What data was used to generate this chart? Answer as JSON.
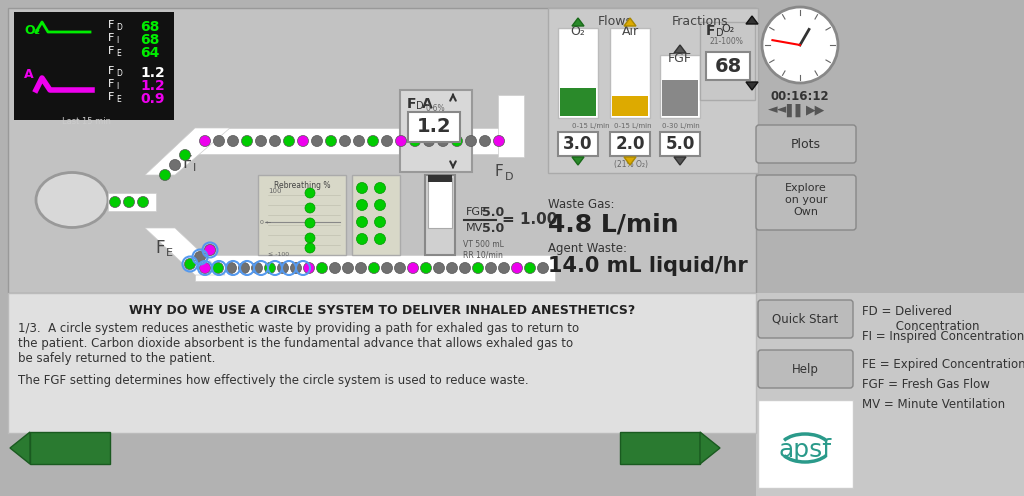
{
  "bg_color": "#b2b2b2",
  "panel_bg": "#c0c0c0",
  "white": "#ffffff",
  "black": "#000000",
  "green_bright": "#00ee00",
  "magenta": "#ee00ee",
  "yellow_flow": "#ddaa00",
  "green_flow": "#2a8a2a",
  "gray_med": "#888888",
  "gray_light": "#cccccc",
  "gray_dark": "#555555",
  "teal": "#2a9a8a",
  "dark_green_btn": "#2a7a30",
  "title_text": "WHY DO WE USE A CIRCLE SYSTEM TO DELIVER INHALED ANESTHETICS?",
  "body_text_1a": "1/3.  A circle system reduces anesthetic waste by providing a path for exhaled gas to return to",
  "body_text_1b": "the patient. Carbon dioxide absorbent is the fundamental advance that allows exhaled gas to",
  "body_text_1c": "be safely returned to the patient.",
  "body_text_2": "The FGF setting determines how effectively the circle system is used to reduce waste.",
  "legend_lines": [
    "FD = Delivered\n         Concentration",
    "FI = Inspired Concentration",
    "FE = Expired Concentration",
    "FGF = Fresh Gas Flow",
    "MV = Minute Ventilation"
  ],
  "waste_gas": "4.8 L/min",
  "agent_waste": "14.0 mL liquid/hr",
  "fgf_mv_ratio": "1.00",
  "vt_rr": "VT 500 mL\nRR 10/min",
  "time_display": "00:16:12",
  "o2_flow": "3.0",
  "air_flow": "2.0",
  "fgf_val": "5.0",
  "fdo2_val": "68",
  "fda_val": "1.2",
  "monitor_fd": "68",
  "monitor_fi": "68",
  "monitor_fe": "64",
  "monitor_afd": "1.2",
  "monitor_afi": "1.2",
  "monitor_afe": "0.9"
}
